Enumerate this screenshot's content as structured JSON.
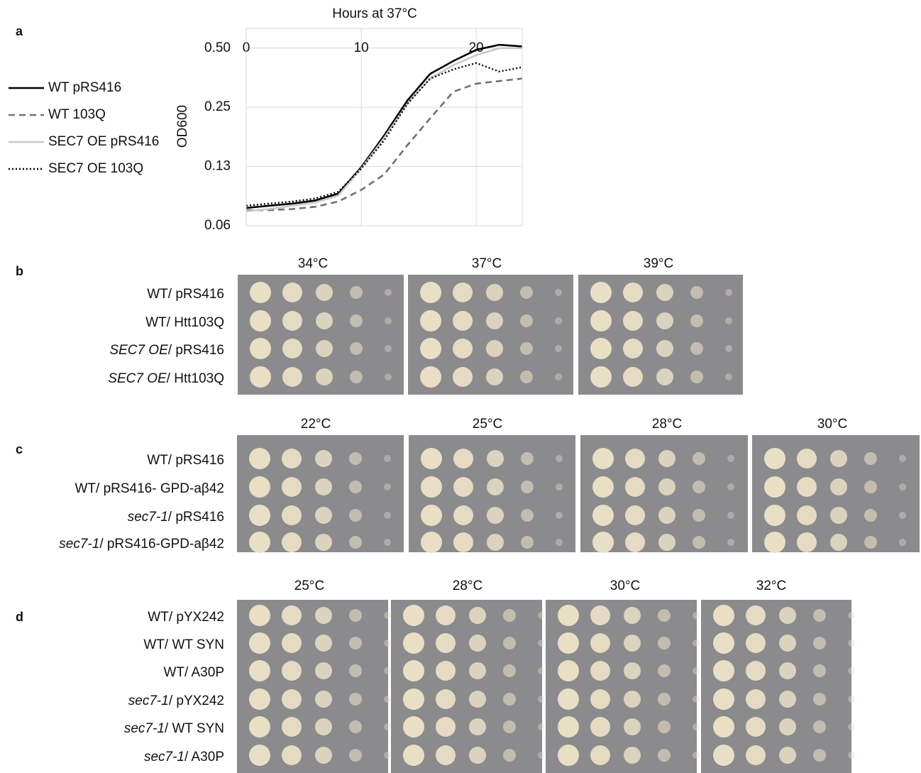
{
  "chart_data": {
    "type": "line",
    "label": "a",
    "title": "Hours at 37°C",
    "y_label": "OD600",
    "x": [
      0,
      2,
      4,
      6,
      8,
      10,
      12,
      14,
      16,
      18,
      20,
      22,
      24
    ],
    "series": [
      {
        "name": "WT pRS416",
        "color": "#000000",
        "linestyle": "solid",
        "values": [
          0.077,
          0.079,
          0.081,
          0.084,
          0.091,
          0.124,
          0.18,
          0.27,
          0.37,
          0.43,
          0.49,
          0.52,
          0.51
        ]
      },
      {
        "name": "WT 103Q",
        "color": "#707070",
        "linestyle": "dashed",
        "values": [
          0.075,
          0.075,
          0.076,
          0.078,
          0.083,
          0.095,
          0.114,
          0.16,
          0.22,
          0.3,
          0.33,
          0.34,
          0.35
        ]
      },
      {
        "name": "SEC7 OE pRS416",
        "color": "#c8c8c8",
        "linestyle": "solid",
        "values": [
          0.074,
          0.076,
          0.079,
          0.082,
          0.089,
          0.122,
          0.175,
          0.26,
          0.35,
          0.41,
          0.46,
          0.5,
          0.5
        ]
      },
      {
        "name": "SEC7 OE 103Q",
        "color": "#000000",
        "linestyle": "dotted",
        "values": [
          0.079,
          0.081,
          0.083,
          0.086,
          0.093,
          0.122,
          0.17,
          0.26,
          0.35,
          0.39,
          0.42,
          0.38,
          0.4
        ]
      }
    ],
    "xlim": [
      0,
      24
    ],
    "xticks": [
      0,
      10,
      20
    ],
    "ylim": [
      0.0625,
      0.63
    ],
    "log_y": true,
    "yticks": [
      {
        "value": 0.0625,
        "label": "0.06"
      },
      {
        "value": 0.125,
        "label": "0.13"
      },
      0.25,
      {
        "value": 0.5,
        "label": "0.50"
      }
    ],
    "grid": true,
    "legend": "left"
  },
  "plates": [
    {
      "label": "b",
      "temps": [
        "34°C",
        "37°C",
        "39°C"
      ],
      "rows": [
        {
          "strain": "WT",
          "plasmid": "/ pRS416",
          "italic": false
        },
        {
          "strain": "WT",
          "plasmid": "/ Htt103Q",
          "italic": false
        },
        {
          "strain": "SEC7 OE",
          "plasmid": "/ pRS416",
          "italic": true
        },
        {
          "strain": "SEC7 OE",
          "plasmid": "/ Htt103Q",
          "italic": true
        }
      ]
    },
    {
      "label": "c",
      "temps": [
        "22°C",
        "25°C",
        "28°C",
        "30°C"
      ],
      "rows": [
        {
          "strain": "WT",
          "plasmid": "/ pRS416",
          "italic": false
        },
        {
          "strain": "WT",
          "plasmid": "/ pRS416- GPD-aβ42",
          "italic": false
        },
        {
          "strain": "sec7-1",
          "plasmid": "/ pRS416",
          "italic": true
        },
        {
          "strain": "sec7-1",
          "plasmid": "/ pRS416-GPD-aβ42",
          "italic": true
        }
      ]
    },
    {
      "label": "d",
      "temps": [
        "25°C",
        "28°C",
        "30°C",
        "32°C"
      ],
      "rows": [
        {
          "strain": "WT",
          "plasmid": "/ pYX242",
          "italic": false
        },
        {
          "strain": "WT",
          "plasmid": "/ WT SYN",
          "italic": false
        },
        {
          "strain": "WT",
          "plasmid": "/ A30P",
          "italic": false
        },
        {
          "strain": "sec7-1",
          "plasmid": "/ pYX242",
          "italic": true
        },
        {
          "strain": "sec7-1",
          "plasmid": "/ WT SYN",
          "italic": true
        },
        {
          "strain": "sec7-1",
          "plasmid": "/ A30P",
          "italic": true
        }
      ]
    }
  ]
}
